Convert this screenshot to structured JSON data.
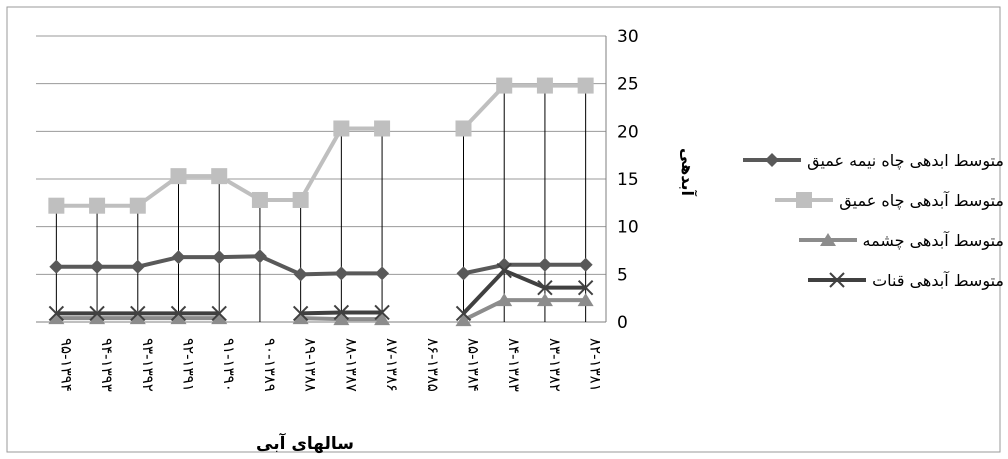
{
  "chart_data": {
    "type": "line",
    "xlabel": "سالهای آبی",
    "ylabel": "آبدهی",
    "ylim": [
      0,
      30
    ],
    "yticks": [
      "0",
      "5",
      "10",
      "15",
      "20",
      "25",
      "30"
    ],
    "y_axis_position": "right",
    "grid": true,
    "legend_position": "right",
    "categories": [
      "۹۵-۱۳۹۴",
      "۹۴-۱۳۹۳",
      "۹۳-۱۳۹۲",
      "۹۲-۱۳۹۱",
      "۹۱-۱۳۹۰",
      "۹۰-۱۳۸۹",
      "۸۹-۱۳۸۸",
      "۸۸-۱۳۸۷",
      "۸۷-۱۳۸۶",
      "۸۶-۱۳۸۵",
      "۸۵-۱۳۸۴",
      "۸۴-۱۳۸۳",
      "۸۳-۱۳۸۲",
      "۸۲-۱۳۸۱"
    ],
    "series": [
      {
        "name": "متوسط ابدهی چاه نیمه عمیق",
        "marker": "diamond",
        "color": "#595959",
        "values": [
          5.8,
          5.8,
          5.8,
          6.8,
          6.8,
          6.9,
          5.0,
          5.1,
          5.1,
          null,
          5.1,
          6.0,
          6.0,
          6.0
        ]
      },
      {
        "name": "متوسط آبدهی چاه عمیق",
        "marker": "square",
        "color": "#bfbfbf",
        "values": [
          12.2,
          12.2,
          12.2,
          15.3,
          15.3,
          12.8,
          12.8,
          20.3,
          20.3,
          null,
          20.3,
          24.8,
          24.8,
          24.8
        ]
      },
      {
        "name": "متوسط آبدهی چشمه",
        "marker": "triangle",
        "color": "#8c8c8c",
        "values": [
          0.4,
          0.4,
          0.4,
          0.4,
          0.4,
          null,
          0.4,
          0.3,
          0.3,
          null,
          0.2,
          2.3,
          2.3,
          2.3
        ]
      },
      {
        "name": "متوسط آبدهی قنات",
        "marker": "x",
        "color": "#404040",
        "values": [
          0.9,
          0.9,
          0.9,
          0.9,
          0.9,
          null,
          0.9,
          1.0,
          1.0,
          null,
          0.9,
          5.4,
          3.6,
          3.6
        ]
      }
    ]
  }
}
